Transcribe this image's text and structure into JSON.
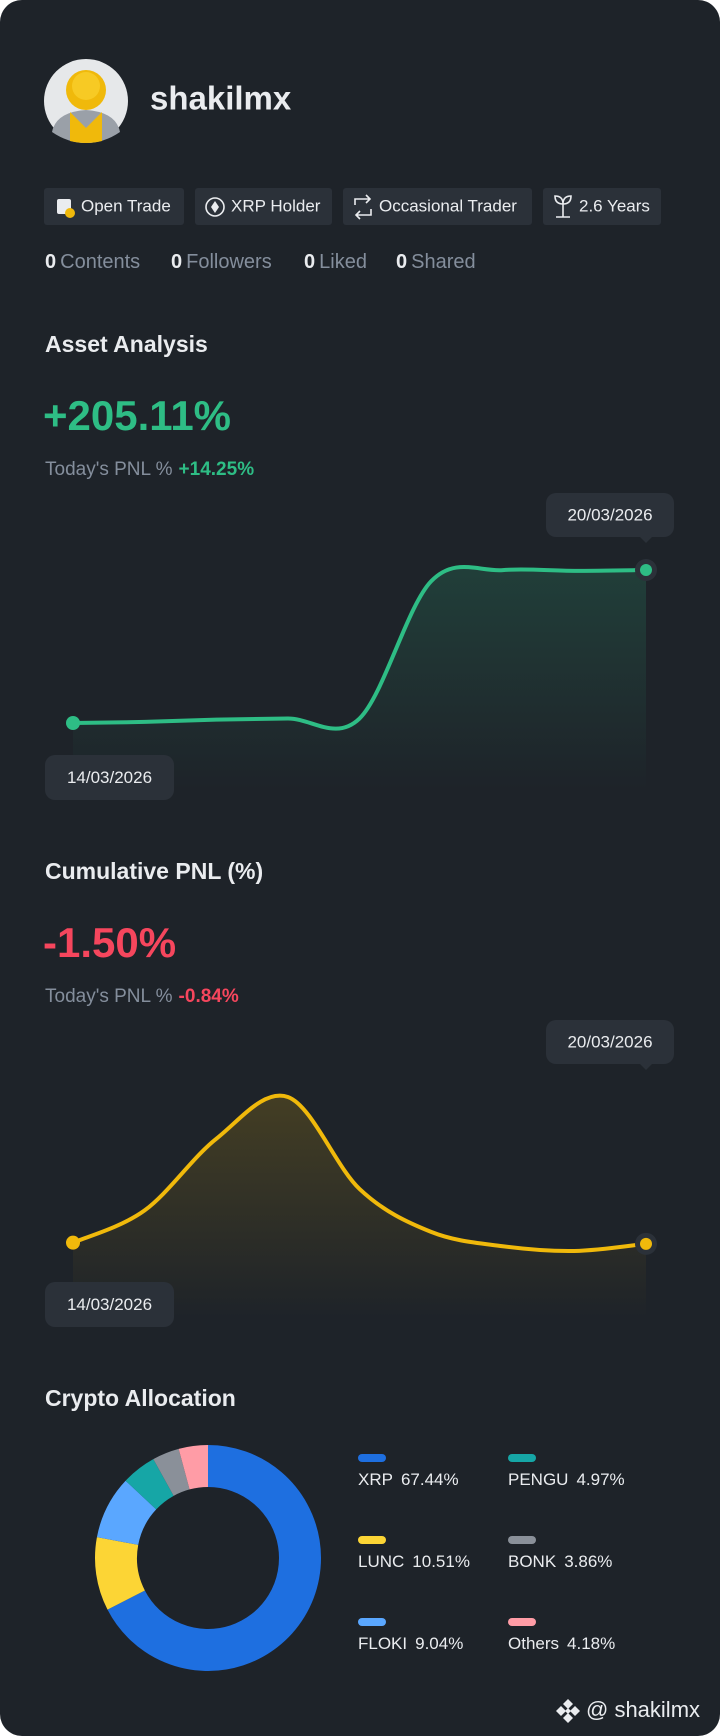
{
  "profile": {
    "name": "shakilmx"
  },
  "tags": [
    "Open Trade",
    "XRP Holder",
    "Occasional Trader",
    "2.6 Years"
  ],
  "stats": [
    {
      "count": 0,
      "label": "Contents"
    },
    {
      "count": 0,
      "label": "Followers"
    },
    {
      "count": 0,
      "label": "Liked"
    },
    {
      "count": 0,
      "label": "Shared"
    }
  ],
  "asset_analysis": {
    "title": "Asset Analysis",
    "value": "+205.11%",
    "pnl_label": "Today's PNL %",
    "pnl_value": "+14.25%",
    "chart": {
      "type": "line",
      "color": "#2ebd85",
      "values": [
        0,
        1.5,
        4.5,
        6,
        6,
        190,
        205,
        204,
        205.11
      ],
      "start_label": "14/03/2026",
      "end_label": "20/03/2026"
    }
  },
  "cumulative_pnl": {
    "title": "Cumulative PNL (%)",
    "value": "-1.50%",
    "pnl_label": "Today's PNL %",
    "pnl_value": "-0.84%",
    "chart": {
      "type": "line",
      "color": "#f0b90b",
      "values": [
        -1.48,
        -0.94,
        0.26,
        0.96,
        -0.58,
        -1.3,
        -1.54,
        -1.62,
        -1.5
      ],
      "start_label": "14/03/2026",
      "end_label": "20/03/2026"
    }
  },
  "allocation": {
    "title": "Crypto Allocation",
    "chart": {
      "type": "donut",
      "categories": [
        "XRP",
        "LUNC",
        "FLOKI",
        "PENGU",
        "BONK",
        "Others"
      ],
      "values": [
        67.44,
        10.51,
        9.04,
        4.97,
        3.86,
        4.18
      ],
      "value_labels": [
        "67.44%",
        "10.51%",
        "9.04%",
        "4.97%",
        "3.86%",
        "4.18%"
      ],
      "colors": [
        "#1e6fe0",
        "#fcd535",
        "#5aa7ff",
        "#16a6a6",
        "#8a9099",
        "#ff9ca6"
      ]
    }
  },
  "footer": {
    "handle": "@ shakilmx"
  }
}
